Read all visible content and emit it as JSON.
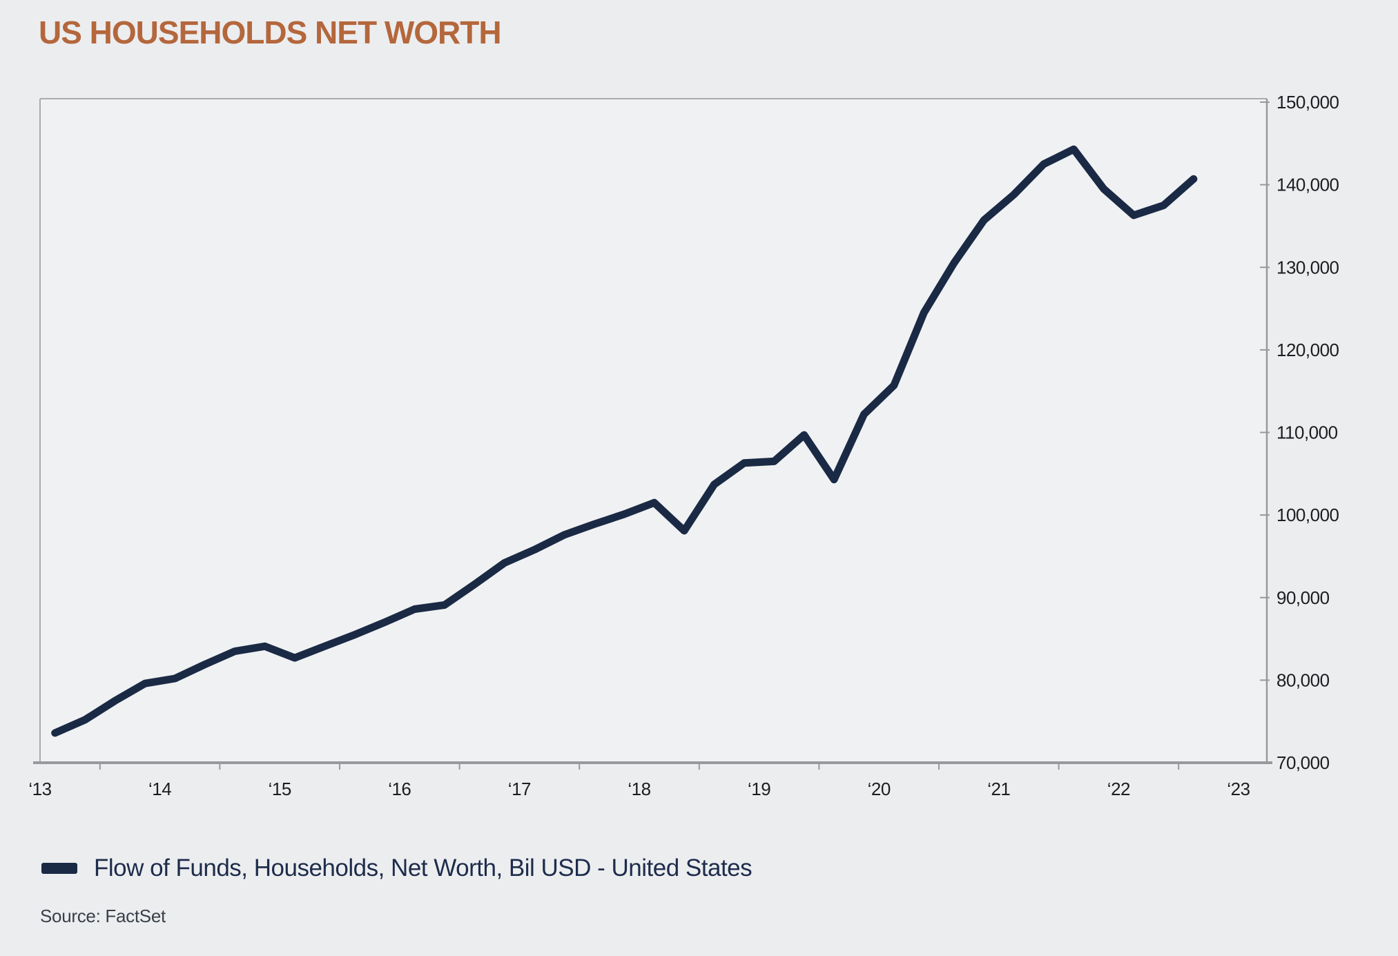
{
  "title": "US HOUSEHOLDS NET WORTH",
  "legend": {
    "label": "Flow of Funds, Households, Net Worth, Bil USD - United States"
  },
  "source": "Source: FactSet",
  "colors": {
    "title": "#b4673c",
    "line": "#1a2a45",
    "legend_text": "#1d2c4b",
    "source_text": "#3a404a",
    "axis": "#98999d",
    "frame": "#a9abae",
    "plot_bg": "#f0f1f3",
    "page_bg": "#ecedef",
    "tick_text": "#1c1d20"
  },
  "chart_data": {
    "type": "line",
    "title": "US HOUSEHOLDS NET WORTH",
    "xlabel": "",
    "ylabel": "",
    "ylim": [
      70000,
      150000
    ],
    "xlim": [
      2013,
      2023.24
    ],
    "grid": false,
    "legend_position": "bottom-left",
    "y_ticks": [
      70000,
      80000,
      90000,
      100000,
      110000,
      120000,
      130000,
      140000,
      150000
    ],
    "x_ticks": [
      {
        "year": 2013,
        "label": "‘13"
      },
      {
        "year": 2014,
        "label": "‘14"
      },
      {
        "year": 2015,
        "label": "‘15"
      },
      {
        "year": 2016,
        "label": "‘16"
      },
      {
        "year": 2017,
        "label": "‘17"
      },
      {
        "year": 2018,
        "label": "‘18"
      },
      {
        "year": 2019,
        "label": "‘19"
      },
      {
        "year": 2020,
        "label": "‘20"
      },
      {
        "year": 2021,
        "label": "‘21"
      },
      {
        "year": 2022,
        "label": "‘22"
      },
      {
        "year": 2023,
        "label": "‘23"
      }
    ],
    "minor_tick_offset": 0.5,
    "series": [
      {
        "name": "Flow of Funds, Households, Net Worth, Bil USD - United States",
        "unit": "Bil USD",
        "periods": [
          "2013 Q1",
          "2013 Q2",
          "2013 Q3",
          "2013 Q4",
          "2014 Q1",
          "2014 Q2",
          "2014 Q3",
          "2014 Q4",
          "2015 Q1",
          "2015 Q2",
          "2015 Q3",
          "2015 Q4",
          "2016 Q1",
          "2016 Q2",
          "2016 Q3",
          "2016 Q4",
          "2017 Q1",
          "2017 Q2",
          "2017 Q3",
          "2017 Q4",
          "2018 Q1",
          "2018 Q2",
          "2018 Q3",
          "2018 Q4",
          "2019 Q1",
          "2019 Q2",
          "2019 Q3",
          "2019 Q4",
          "2020 Q1",
          "2020 Q2",
          "2020 Q3",
          "2020 Q4",
          "2021 Q1",
          "2021 Q2",
          "2021 Q3",
          "2021 Q4",
          "2022 Q1",
          "2022 Q2",
          "2022 Q3"
        ],
        "values": [
          73600,
          75200,
          77500,
          79600,
          80200,
          81900,
          83500,
          84100,
          82700,
          84100,
          85500,
          87000,
          88600,
          89100,
          91600,
          94200,
          95800,
          97600,
          98900,
          100100,
          101500,
          98100,
          103700,
          106300,
          106500,
          109700,
          104300,
          112200,
          115700,
          124500,
          130500,
          135700,
          138800,
          142500,
          144300,
          139500,
          136300,
          137500,
          140700
        ]
      }
    ]
  }
}
